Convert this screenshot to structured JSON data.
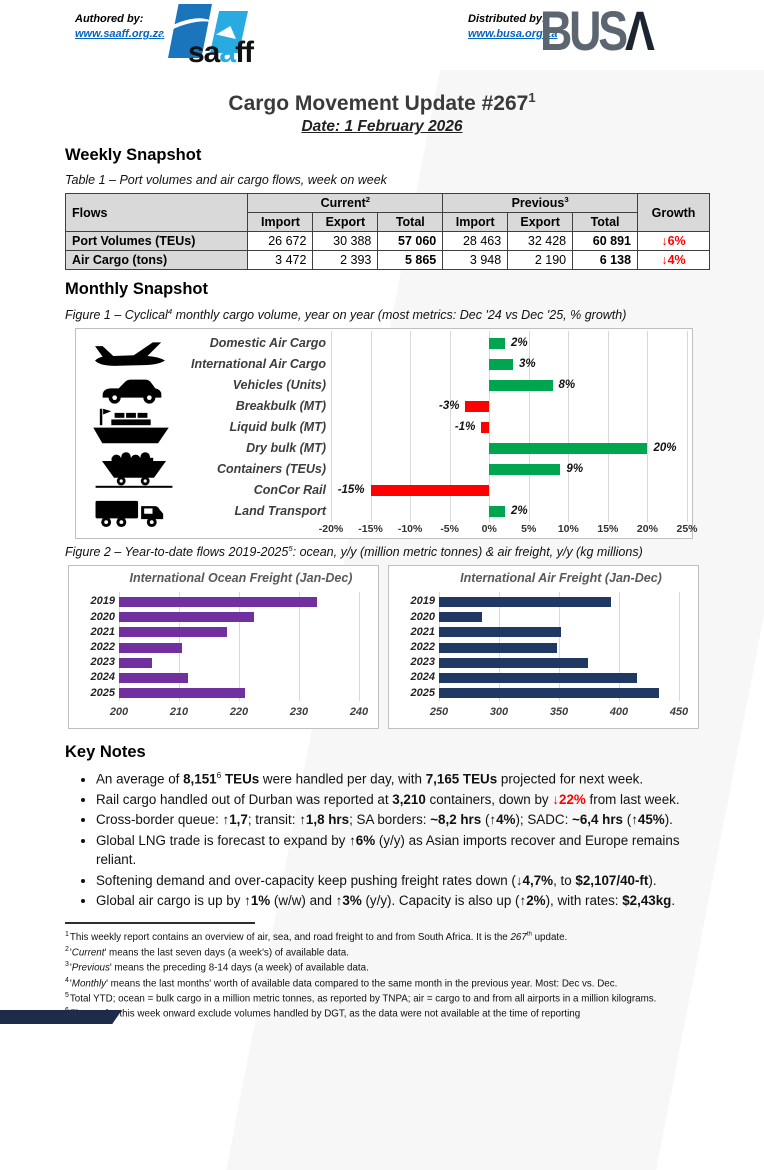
{
  "header": {
    "authored_label": "Authored by:",
    "authored_link": "www.saaff.org.za",
    "distributed_label": "Distributed by:",
    "distributed_link": "www.busa.org.za",
    "saaff_logo": {
      "part1": "sa",
      "part2": "a",
      "part3": "ff"
    },
    "busa_logo": {
      "part1": "BUS",
      "part2": "Λ"
    }
  },
  "title": {
    "main": "Cargo Movement Update #267",
    "sup": "1",
    "date": "Date: 1 February 2026"
  },
  "weekly": {
    "heading": "Weekly Snapshot",
    "caption": [
      {
        "t": "Table 1 – Port volumes and air cargo flows, week on week"
      }
    ],
    "table": {
      "col_flows": "Flows",
      "group_current": "Current",
      "group_current_sup": "2",
      "group_previous": "Previous",
      "group_previous_sup": "3",
      "col_growth": "Growth",
      "subheads": [
        "Import",
        "Export",
        "Total",
        "Import",
        "Export",
        "Total"
      ],
      "rows": [
        {
          "label": "Port Volumes (TEUs)",
          "current": [
            "26 672",
            "30 388",
            "57 060"
          ],
          "previous": [
            "28 463",
            "32 428",
            "60 891"
          ],
          "growth": "↓6%"
        },
        {
          "label": "Air Cargo (tons)",
          "current": [
            "3 472",
            "2 393",
            "5 865"
          ],
          "previous": [
            "3 948",
            "2 190",
            "6 138"
          ],
          "growth": "↓4%"
        }
      ]
    }
  },
  "monthly": {
    "heading": "Monthly Snapshot",
    "fig1_caption": [
      {
        "t": "Figure 1 – Cyclical"
      },
      {
        "sup": "4"
      },
      {
        "t": " monthly cargo volume, year on year (most metrics: Dec '24 vs Dec '25, % growth)"
      }
    ],
    "fig2_caption": [
      {
        "t": "Figure 2 – Year-to-date flows 2019-2025"
      },
      {
        "sup": "5"
      },
      {
        "t": ": ocean, y/y (million metric tonnes) & air freight, y/y (kg millions)"
      }
    ],
    "fig1_icons": [
      "airplane",
      "car",
      "cargo-ship",
      "rail-wagon",
      "truck"
    ]
  },
  "chart_data": [
    {
      "id": "figure1",
      "type": "bar",
      "orientation": "horizontal",
      "categories": [
        "Domestic Air Cargo",
        "International Air Cargo",
        "Vehicles (Units)",
        "Breakbulk (MT)",
        "Liquid bulk (MT)",
        "Dry bulk (MT)",
        "Containers (TEUs)",
        "ConCor Rail",
        "Land Transport"
      ],
      "values": [
        2,
        3,
        8,
        -3,
        -1,
        20,
        9,
        -15,
        2
      ],
      "value_labels": [
        "2%",
        "3%",
        "8%",
        "-3%",
        "-1%",
        "20%",
        "9%",
        "-15%",
        "2%"
      ],
      "xlim": [
        -20,
        25
      ],
      "tick_values": [
        -20,
        -15,
        -10,
        -5,
        0,
        5,
        10,
        15,
        20,
        25
      ],
      "tick_labels": [
        "-20%",
        "-15%",
        "-10%",
        "-5%",
        "0%",
        "5%",
        "10%",
        "15%",
        "20%",
        "25%"
      ],
      "positive_color": "#00A550",
      "negative_color": "#FF0000",
      "grid": true,
      "legend": "none"
    },
    {
      "id": "figure2-ocean",
      "type": "bar",
      "orientation": "horizontal",
      "title": "International Ocean Freight (Jan-Dec)",
      "categories": [
        "2019",
        "2020",
        "2021",
        "2022",
        "2023",
        "2024",
        "2025"
      ],
      "values": [
        233,
        222.5,
        218,
        210.5,
        205.5,
        211.5,
        221
      ],
      "xlim": [
        200,
        242
      ],
      "tick_values": [
        200,
        210,
        220,
        230,
        240
      ],
      "color": "#7030A0",
      "grid": true,
      "legend": "none"
    },
    {
      "id": "figure2-air",
      "type": "bar",
      "orientation": "horizontal",
      "title": "International Air Freight (Jan-Dec)",
      "categories": [
        "2019",
        "2020",
        "2021",
        "2022",
        "2023",
        "2024",
        "2025"
      ],
      "values": [
        393,
        286,
        352,
        348,
        374,
        415,
        433
      ],
      "xlim": [
        250,
        460
      ],
      "tick_values": [
        250,
        300,
        350,
        400,
        450
      ],
      "color": "#1F3864",
      "grid": true,
      "legend": "none"
    }
  ],
  "key_notes": {
    "heading": "Key Notes",
    "items": [
      [
        {
          "t": "An average of "
        },
        {
          "b": "8,151"
        },
        {
          "sup": "6"
        },
        {
          "b": " TEUs"
        },
        {
          "t": " were handled per day, with "
        },
        {
          "b": "7,165 TEUs"
        },
        {
          "t": " projected for next week."
        }
      ],
      [
        {
          "t": "Rail cargo handled out of Durban was reported at "
        },
        {
          "b": "3,210"
        },
        {
          "t": " containers, down by "
        },
        {
          "r": "↓22%"
        },
        {
          "t": " from last week."
        }
      ],
      [
        {
          "t": "Cross-border queue: "
        },
        {
          "b": "↑1,7"
        },
        {
          "t": "; transit: "
        },
        {
          "b": "↑1,8 hrs"
        },
        {
          "t": "; SA borders: "
        },
        {
          "b": "~8,2 hrs"
        },
        {
          "t": " ("
        },
        {
          "b": "↑4%"
        },
        {
          "t": "); SADC: "
        },
        {
          "b": "~6,4 hrs"
        },
        {
          "t": " ("
        },
        {
          "b": "↑45%"
        },
        {
          "t": ")."
        }
      ],
      [
        {
          "t": "Global LNG trade is forecast to expand by "
        },
        {
          "b": "↑6%"
        },
        {
          "t": " (y/y) as Asian imports recover and Europe remains reliant."
        }
      ],
      [
        {
          "t": "Softening demand and over-capacity keep pushing freight rates down ("
        },
        {
          "b": "↓4,7%"
        },
        {
          "t": ", to "
        },
        {
          "b": "$2,107/40-ft"
        },
        {
          "t": ")."
        }
      ],
      [
        {
          "t": "Global air cargo is up by "
        },
        {
          "b": "↑1%"
        },
        {
          "t": " (w/w) and "
        },
        {
          "b": "↑3%"
        },
        {
          "t": " (y/y). Capacity is also up ("
        },
        {
          "b": "↑2%"
        },
        {
          "t": "), with rates: "
        },
        {
          "b": "$2,43kg"
        },
        {
          "t": "."
        }
      ]
    ]
  },
  "footnotes": [
    {
      "sup": "1",
      "segments": [
        {
          "t": "This weekly report contains an overview of air, sea, and road freight to and from South Africa. It is the "
        },
        {
          "i": "267"
        },
        {
          "sup": "th"
        },
        {
          "t": " update."
        }
      ]
    },
    {
      "sup": "2",
      "segments": [
        {
          "t": "'"
        },
        {
          "i": "Current"
        },
        {
          "t": "' means the last seven days (a week's) of available data."
        }
      ]
    },
    {
      "sup": "3",
      "segments": [
        {
          "t": "'"
        },
        {
          "i": "Previous"
        },
        {
          "t": "' means the preceding 8-14 days (a week) of available data."
        }
      ]
    },
    {
      "sup": "4",
      "segments": [
        {
          "t": "'"
        },
        {
          "i": "Monthly"
        },
        {
          "t": "' means the last months' worth of available data compared to the same month in the previous year. Most: Dec vs. Dec."
        }
      ]
    },
    {
      "sup": "5",
      "segments": [
        {
          "t": "Total YTD; ocean = bulk cargo in a million metric tonnes, as reported by TNPA; air = cargo to and from all airports in a million kilograms."
        }
      ]
    },
    {
      "sup": "6",
      "segments": [
        {
          "t": "Figures for this week onward exclude volumes handled by DGT, as the data were not available at the time of reporting"
        }
      ]
    }
  ],
  "colors": {
    "green": "#00A550",
    "red": "#FF0000",
    "purple": "#7030A0",
    "navy": "#1F3864",
    "link_blue": "#0563C1",
    "table_header_bg": "#D9D9D9"
  }
}
